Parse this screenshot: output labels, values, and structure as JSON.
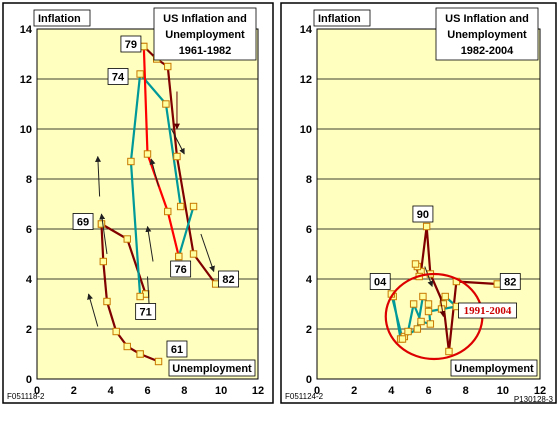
{
  "chart_data": [
    {
      "type": "line",
      "title": "US Inflation and Unemployment 1961-1982",
      "title_lines": [
        "US Inflation and",
        "Unemployment",
        "1961-1982"
      ],
      "ylabel": "Inflation",
      "xlabel": "Unemployment",
      "xlim": [
        0,
        12
      ],
      "ylim": [
        0,
        14
      ],
      "xticks": [
        "0",
        "2",
        "4",
        "6",
        "8",
        "10",
        "12"
      ],
      "yticks": [
        "0",
        "2",
        "4",
        "6",
        "8",
        "10",
        "12",
        "14"
      ],
      "grid": true,
      "footnote": "F051118-2",
      "series": [
        {
          "color": "#800000",
          "x": [
            3.5,
            3.6,
            3.8,
            4.3,
            4.9,
            5.6
          ],
          "y": [
            6.2,
            4.7,
            3.1,
            1.9,
            1.3,
            1.0
          ]
        },
        {
          "color": "#800000",
          "x": [
            5.6,
            6.6
          ],
          "y": [
            1.0,
            0.7
          ]
        },
        {
          "color": "#800000",
          "x": [
            3.5,
            4.9,
            5.9
          ],
          "y": [
            6.2,
            5.6,
            3.4
          ]
        },
        {
          "color": "#009999",
          "x": [
            5.9,
            5.6,
            5.1,
            5.6,
            7.0,
            7.8
          ],
          "y": [
            3.4,
            3.3,
            8.7,
            12.2,
            11.0,
            6.9
          ]
        },
        {
          "color": "#800000",
          "x": [
            5.8,
            6.5,
            7.1,
            7.6,
            8.5,
            9.7
          ],
          "y": [
            13.3,
            12.8,
            12.5,
            8.9,
            5.0,
            3.8
          ]
        },
        {
          "color": "#ff0000",
          "x": [
            5.8,
            6.0,
            7.1,
            7.7
          ],
          "y": [
            13.3,
            9.0,
            6.7,
            4.9
          ]
        },
        {
          "color": "#009999",
          "x": [
            7.7,
            8.5
          ],
          "y": [
            4.9,
            6.9
          ]
        }
      ],
      "year_labels": [
        {
          "text": "79",
          "x": 5.1,
          "y": 13.4
        },
        {
          "text": "74",
          "x": 4.4,
          "y": 12.1
        },
        {
          "text": "69",
          "x": 2.5,
          "y": 6.3
        },
        {
          "text": "71",
          "x": 5.9,
          "y": 2.7
        },
        {
          "text": "76",
          "x": 7.8,
          "y": 4.4
        },
        {
          "text": "82",
          "x": 10.4,
          "y": 4.0
        },
        {
          "text": "61",
          "x": 7.6,
          "y": 1.2
        }
      ],
      "arrows": [
        {
          "color": "#800000",
          "x": [
            7.6,
            7.6
          ],
          "y": [
            11.5,
            10.0
          ]
        },
        {
          "color": "#009999",
          "x": [
            3.8,
            3.5
          ],
          "y": [
            5.0,
            6.6
          ]
        },
        {
          "color": "#009999",
          "x": [
            3.4,
            3.3
          ],
          "y": [
            7.3,
            8.9
          ]
        },
        {
          "color": "#009999",
          "x": [
            7.3,
            8.0
          ],
          "y": [
            10.0,
            9.0
          ]
        },
        {
          "color": "#009999",
          "x": [
            6.6,
            6.2
          ],
          "y": [
            7.7,
            8.8
          ]
        },
        {
          "color": "#009999",
          "x": [
            8.9,
            9.6
          ],
          "y": [
            5.8,
            4.3
          ]
        },
        {
          "color": "#009999",
          "x": [
            6.3,
            6.0
          ],
          "y": [
            4.7,
            6.1
          ]
        },
        {
          "color": "#009999",
          "x": [
            6.0,
            6.1
          ],
          "y": [
            4.1,
            2.8
          ]
        },
        {
          "color": "#009999",
          "x": [
            3.3,
            2.8
          ],
          "y": [
            2.1,
            3.4
          ]
        }
      ]
    },
    {
      "type": "line",
      "title": "US Inflation and Unemployment 1982-2004",
      "title_lines": [
        "US Inflation and",
        "Unemployment",
        "1982-2004"
      ],
      "ylabel": "Inflation",
      "xlabel": "Unemployment",
      "xlim": [
        0,
        12
      ],
      "ylim": [
        0,
        14
      ],
      "xticks": [
        "0",
        "2",
        "4",
        "6",
        "8",
        "10",
        "12"
      ],
      "yticks": [
        "0",
        "2",
        "4",
        "6",
        "8",
        "10",
        "12",
        "14"
      ],
      "grid": true,
      "footnote": "F051124-2",
      "footnote2": "P130128-3",
      "series": [
        {
          "color": "#800000",
          "x": [
            9.7,
            7.5,
            7.1,
            6.8,
            6.1,
            5.9,
            5.6,
            5.4,
            5.3,
            5.5
          ],
          "y": [
            3.8,
            3.9,
            1.1,
            3.0,
            4.2,
            6.1,
            4.3,
            4.5,
            4.6,
            4.1
          ]
        },
        {
          "color": "#009999",
          "x": [
            4.1,
            4.5,
            4.7,
            5.4,
            5.7,
            6.0,
            6.1,
            5.6,
            5.2,
            4.9,
            4.6,
            4.0
          ],
          "y": [
            3.3,
            1.6,
            1.7,
            2.0,
            3.3,
            3.0,
            2.2,
            2.3,
            3.0,
            1.9,
            1.6,
            3.4
          ]
        },
        {
          "color": "#009999",
          "x": [
            6.0,
            7.5,
            6.9,
            6.7
          ],
          "y": [
            2.7,
            2.9,
            3.3,
            2.8
          ]
        }
      ],
      "year_labels": [
        {
          "text": "90",
          "x": 5.7,
          "y": 6.6
        },
        {
          "text": "04",
          "x": 3.4,
          "y": 3.9
        },
        {
          "text": "82",
          "x": 10.4,
          "y": 3.9
        }
      ],
      "arrows": [
        {
          "color": "#800000",
          "x": [
            6.6,
            6.8
          ],
          "y": [
            3.4,
            2.5
          ]
        },
        {
          "color": "#009999",
          "x": [
            5.8,
            6.2
          ],
          "y": [
            4.5,
            3.7
          ]
        }
      ],
      "annotation": {
        "text": "1991-2004",
        "ellipse_color": "#dd0000",
        "cx": 6.3,
        "cy": 2.5,
        "rx": 2.6,
        "ry": 1.7
      }
    }
  ]
}
